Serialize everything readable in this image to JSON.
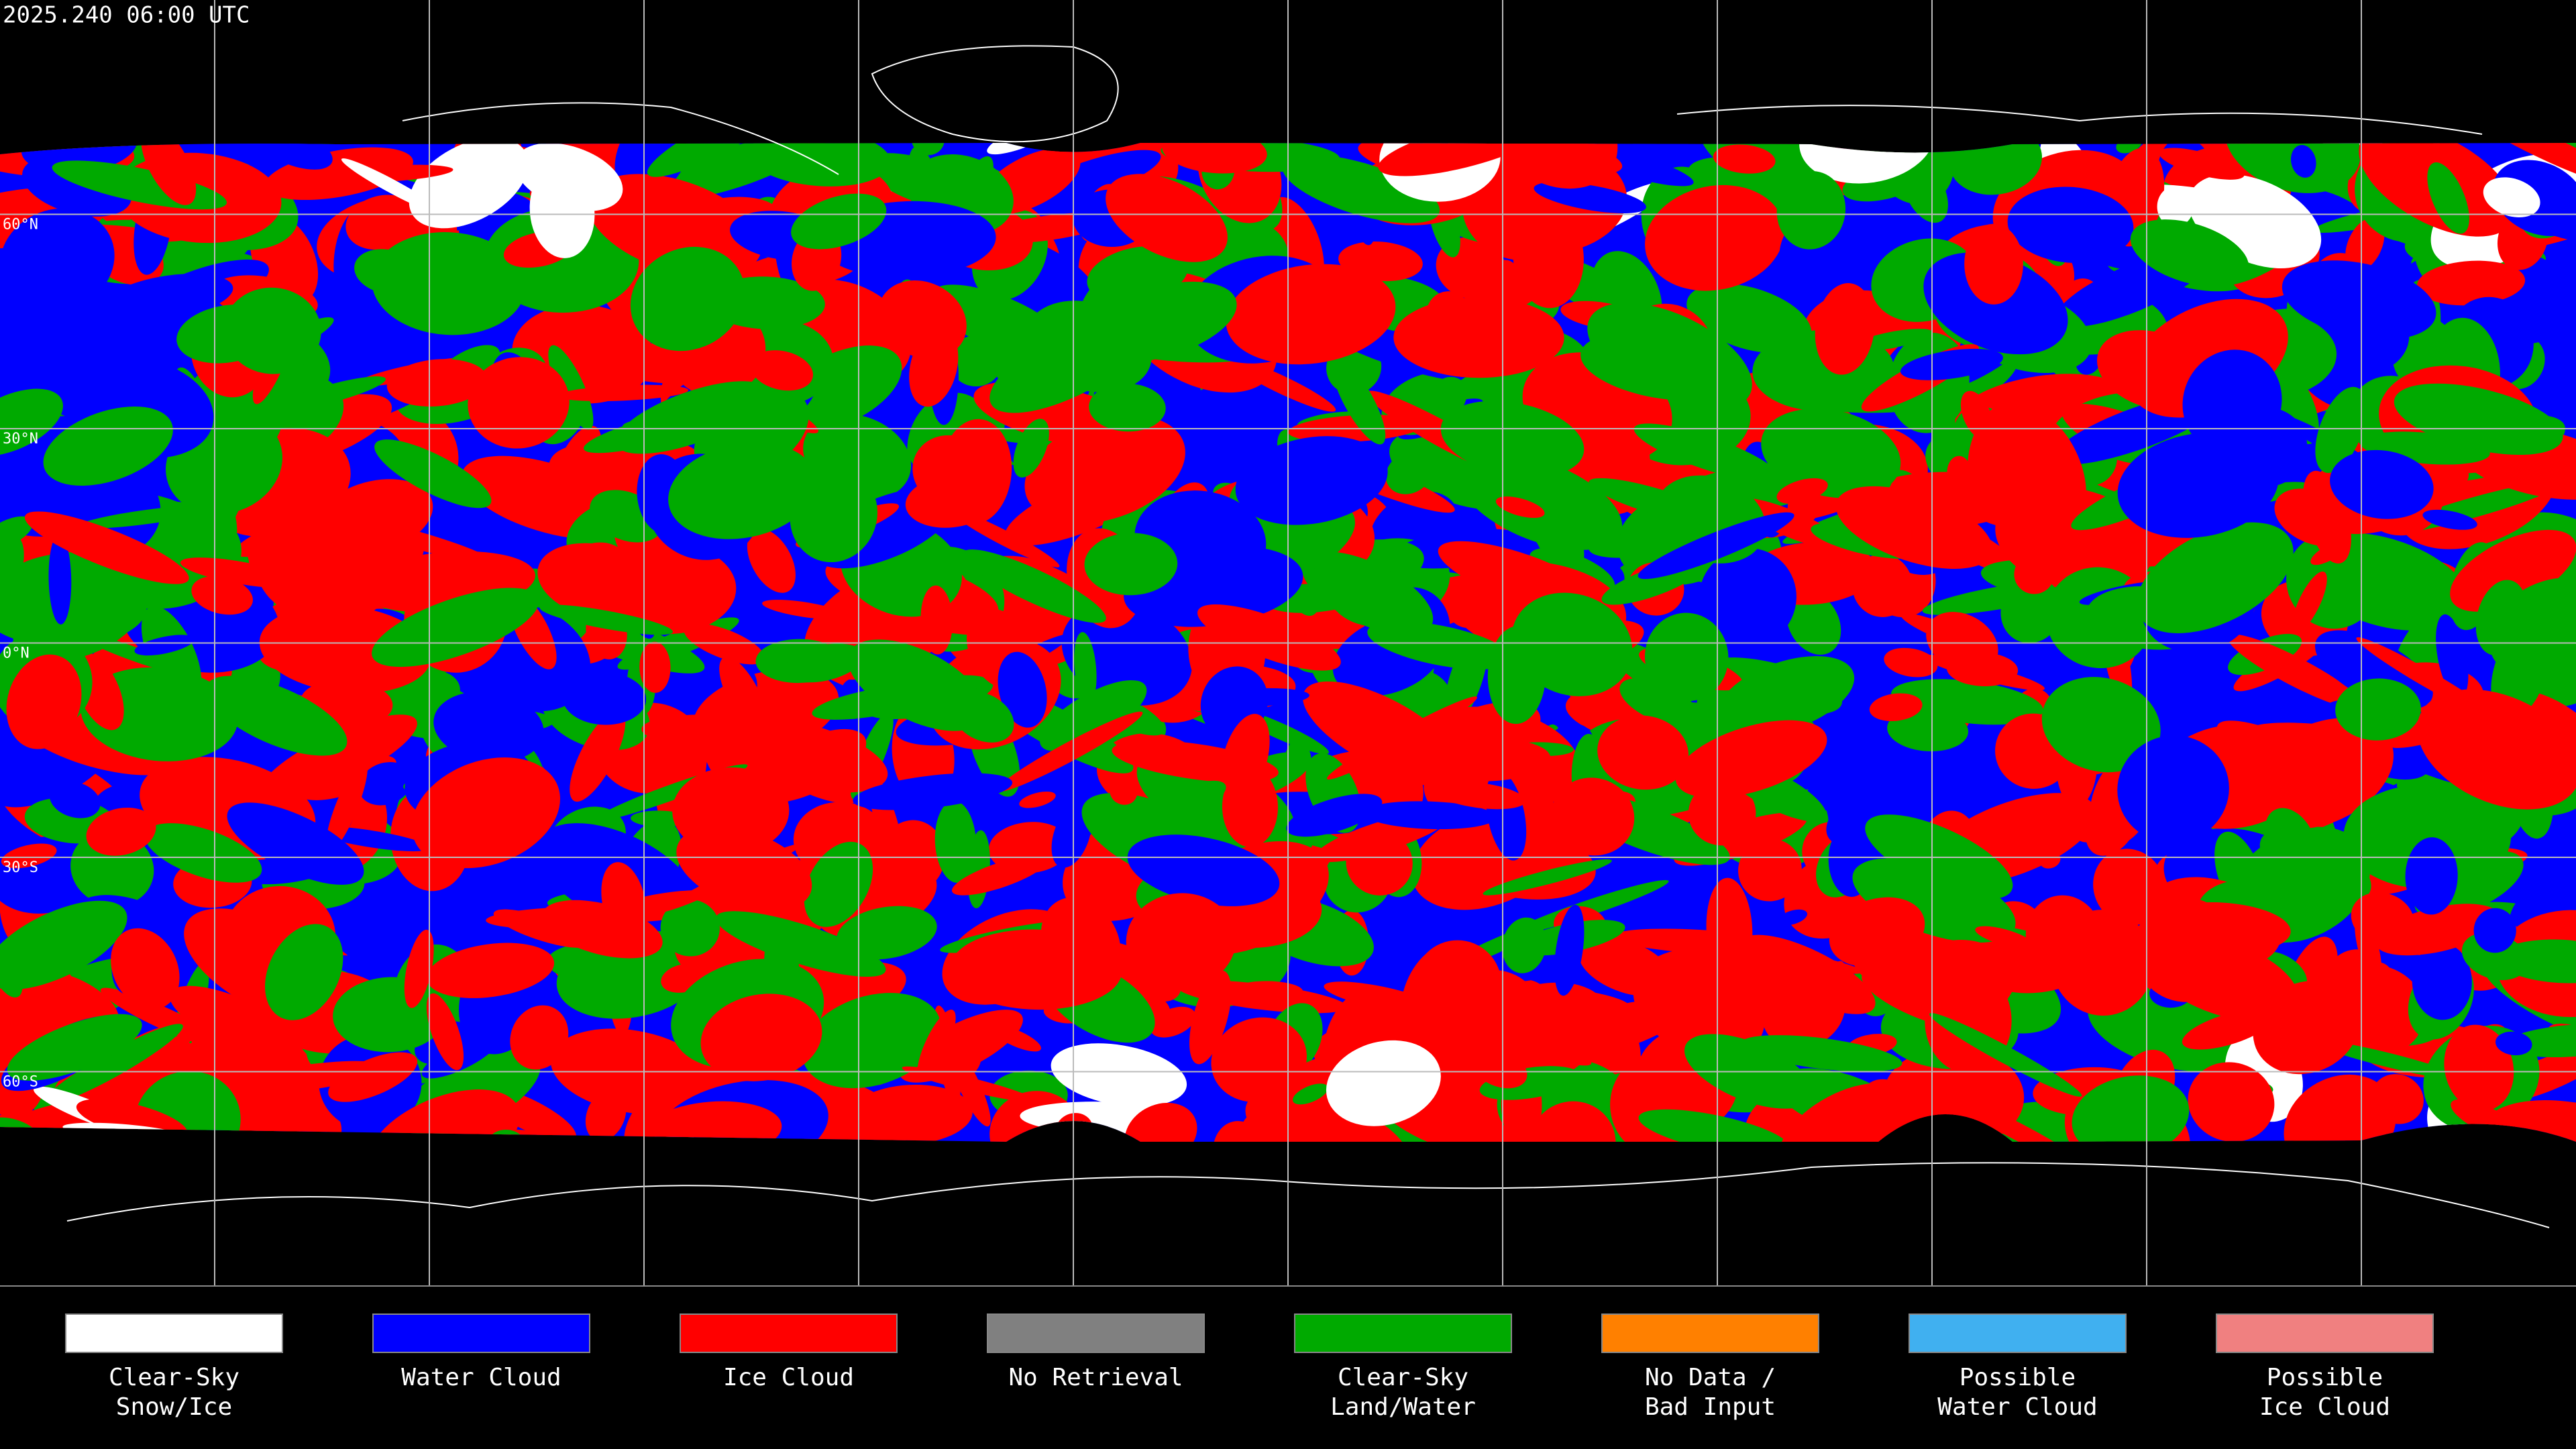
{
  "map": {
    "timestamp": "2025.240 06:00 UTC",
    "latitude_labels": [
      "60°N",
      "30°N",
      "0°N",
      "30°S",
      "60°S"
    ],
    "legend": [
      {
        "lines": [
          "Clear-Sky",
          "Snow/Ice"
        ],
        "color": "#ffffff"
      },
      {
        "lines": [
          "Water Cloud"
        ],
        "color": "#0000ff"
      },
      {
        "lines": [
          "Ice Cloud"
        ],
        "color": "#ff0000"
      },
      {
        "lines": [
          "No Retrieval"
        ],
        "color": "#808080"
      },
      {
        "lines": [
          "Clear-Sky",
          "Land/Water"
        ],
        "color": "#00aa00"
      },
      {
        "lines": [
          "No Data /",
          "Bad Input"
        ],
        "color": "#ff8000"
      },
      {
        "lines": [
          "Possible",
          "Water Cloud"
        ],
        "color": "#40b0f0"
      },
      {
        "lines": [
          "Possible",
          "Ice Cloud"
        ],
        "color": "#f08080"
      }
    ]
  }
}
